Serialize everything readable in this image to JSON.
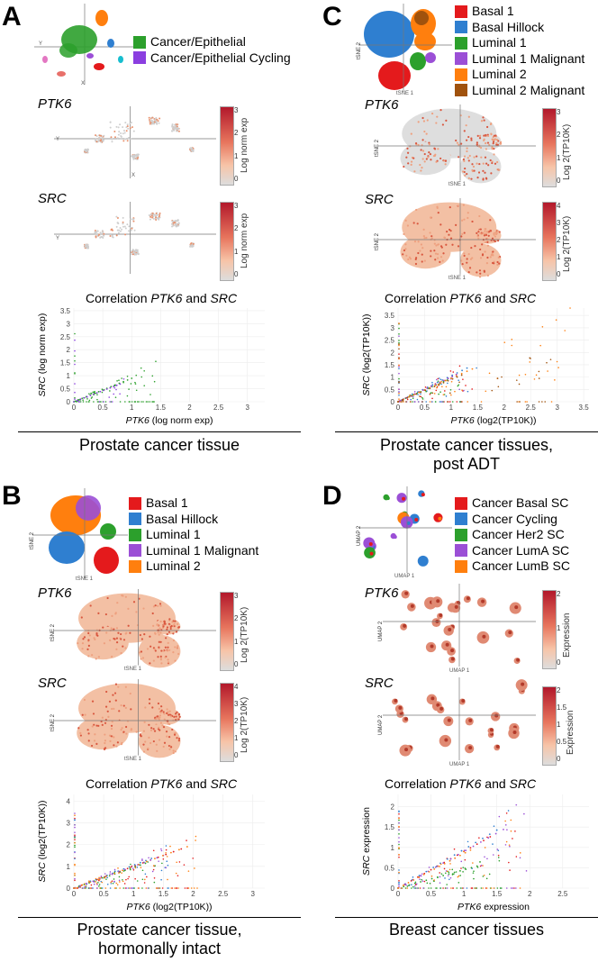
{
  "panels": {
    "A": {
      "letter": "A",
      "legend": [
        {
          "label": "Cancer/Epithelial",
          "color": "#2ca02c"
        },
        {
          "label": "Cancer/Epithelial Cycling",
          "color": "#8b3fe0"
        }
      ],
      "gene1": "PTK6",
      "gene2": "SRC",
      "colorbar_label": "Log norm exp",
      "colorbar_ticks": [
        "3",
        "2",
        "1",
        "0"
      ],
      "umap_x": "X",
      "umap_y": "Y",
      "corr_prefix": "Correlation ",
      "corr_and": " and ",
      "caption_lines": [
        "Prostate cancer tissue"
      ]
    },
    "B": {
      "letter": "B",
      "legend": [
        {
          "label": "Basal 1",
          "color": "#e41a1c"
        },
        {
          "label": "Basal Hillock",
          "color": "#2f7fd0"
        },
        {
          "label": "Luminal 1",
          "color": "#2ca02c"
        },
        {
          "label": "Luminal 1 Malignant",
          "color": "#9b4fd6"
        },
        {
          "label": "Luminal 2",
          "color": "#ff7f0e"
        }
      ],
      "gene1": "PTK6",
      "gene2": "SRC",
      "colorbar_label": "Log 2(TP10K)",
      "colorbar1_ticks": [
        "3",
        "2",
        "1",
        "0"
      ],
      "colorbar2_ticks": [
        "4",
        "3",
        "2",
        "1",
        "0"
      ],
      "umap_x": "tSNE 1",
      "umap_y": "tSNE 2",
      "corr_prefix": "Correlation ",
      "corr_and": " and ",
      "caption_lines": [
        "Prostate cancer tissue,",
        "hormonally intact"
      ]
    },
    "C": {
      "letter": "C",
      "legend": [
        {
          "label": "Basal 1",
          "color": "#e41a1c"
        },
        {
          "label": "Basal Hillock",
          "color": "#2f7fd0"
        },
        {
          "label": "Luminal 1",
          "color": "#2ca02c"
        },
        {
          "label": "Luminal 1 Malignant",
          "color": "#9b4fd6"
        },
        {
          "label": "Luminal 2",
          "color": "#ff7f0e"
        },
        {
          "label": "Luminal 2 Malignant",
          "color": "#a0520d"
        }
      ],
      "gene1": "PTK6",
      "gene2": "SRC",
      "colorbar_label": "Log 2(TP10K)",
      "colorbar1_ticks": [
        "3",
        "2",
        "1",
        "0"
      ],
      "colorbar2_ticks": [
        "4",
        "3",
        "2",
        "1",
        "0"
      ],
      "umap_x": "tSNE 1",
      "umap_y": "tSNE 2",
      "corr_prefix": "Correlation ",
      "corr_and": " and ",
      "caption_lines": [
        "Prostate cancer tissues,",
        "post ADT"
      ]
    },
    "D": {
      "letter": "D",
      "legend": [
        {
          "label": "Cancer Basal SC",
          "color": "#e41a1c"
        },
        {
          "label": "Cancer Cycling",
          "color": "#2f7fd0"
        },
        {
          "label": "Cancer Her2 SC",
          "color": "#2ca02c"
        },
        {
          "label": "Cancer LumA SC",
          "color": "#9b4fd6"
        },
        {
          "label": "Cancer LumB SC",
          "color": "#ff7f0e"
        }
      ],
      "gene1": "PTK6",
      "gene2": "SRC",
      "colorbar_label": "Expression",
      "colorbar1_ticks": [
        "2",
        "1",
        "0"
      ],
      "colorbar2_ticks": [
        "2",
        "1.5",
        "1",
        "0.5",
        "0"
      ],
      "umap_x": "UMAP 1",
      "umap_y": "UMAP 2",
      "corr_prefix": "Correlation ",
      "corr_and": " and ",
      "caption_lines": [
        "Breast cancer tissues"
      ]
    }
  },
  "chart_data": [
    {
      "type": "scatter",
      "panel": "A",
      "title": "Correlation PTK6 and SRC",
      "xlabel_gene": "PTK6",
      "xlabel_unit": " (log norm exp)",
      "ylabel_gene": "SRC",
      "ylabel_unit": " (log norm exp)",
      "xlim": [
        0,
        3.3
      ],
      "ylim": [
        0,
        3.6
      ],
      "xticks": [
        "0",
        "0.5",
        "1",
        "1.5",
        "2",
        "2.5",
        "3"
      ],
      "xtick_values": [
        0,
        0.5,
        1,
        1.5,
        2,
        2.5,
        3
      ],
      "yticks": [
        "0",
        "0.5",
        "1",
        "1.5",
        "2",
        "2.5",
        "3",
        "3.5"
      ],
      "ytick_values": [
        0,
        0.5,
        1,
        1.5,
        2,
        2.5,
        3,
        3.5
      ],
      "series": [
        {
          "name": "Cancer/Epithelial",
          "color": "#2ca02c",
          "trend_slope": 0.9,
          "trend_xmax": 1.0,
          "x_spread": 1.45,
          "n": 90
        },
        {
          "name": "Cancer/Epithelial Cycling",
          "color": "#8b3fe0",
          "trend_slope": 0.85,
          "trend_xmax": 0.8,
          "x_spread": 1.0,
          "n": 15
        }
      ]
    },
    {
      "type": "scatter",
      "panel": "B",
      "title": "Correlation PTK6 and SRC",
      "xlabel_gene": "PTK6",
      "xlabel_unit": " (log2(TP10K))",
      "ylabel_gene": "SRC",
      "ylabel_unit": " (log2(TP10K))",
      "xlim": [
        0,
        3.2
      ],
      "ylim": [
        0,
        4.3
      ],
      "xticks": [
        "0",
        "0.5",
        "1",
        "1.5",
        "2",
        "2.5",
        "3"
      ],
      "xtick_values": [
        0,
        0.5,
        1,
        1.5,
        2,
        2.5,
        3
      ],
      "yticks": [
        "0",
        "1",
        "2",
        "3",
        "4"
      ],
      "ytick_values": [
        0,
        1,
        2,
        3,
        4
      ],
      "series": [
        {
          "name": "Basal 1",
          "color": "#e41a1c",
          "trend_slope": 1.0,
          "trend_xmax": 1.8,
          "x_spread": 2.0,
          "n": 40
        },
        {
          "name": "Basal Hillock",
          "color": "#2f7fd0",
          "trend_slope": 1.05,
          "trend_xmax": 1.3,
          "x_spread": 1.6,
          "n": 35
        },
        {
          "name": "Luminal 1",
          "color": "#2ca02c",
          "trend_slope": 0.95,
          "trend_xmax": 1.2,
          "x_spread": 1.5,
          "n": 35
        },
        {
          "name": "Luminal 1 Malignant",
          "color": "#9b4fd6",
          "trend_slope": 1.0,
          "trend_xmax": 1.5,
          "x_spread": 1.8,
          "n": 35
        },
        {
          "name": "Luminal 2",
          "color": "#ff7f0e",
          "trend_slope": 1.0,
          "trend_xmax": 1.9,
          "x_spread": 2.1,
          "n": 60
        }
      ]
    },
    {
      "type": "scatter",
      "panel": "C",
      "title": "Correlation PTK6 and SRC",
      "xlabel_gene": "PTK6",
      "xlabel_unit": " (log2(TP10K))",
      "ylabel_gene": "SRC",
      "ylabel_unit": " (log2(TP10K))",
      "xlim": [
        0,
        3.6
      ],
      "ylim": [
        0,
        3.8
      ],
      "xticks": [
        "0",
        "0.5",
        "1",
        "1.5",
        "2",
        "2.5",
        "3",
        "3.5"
      ],
      "xtick_values": [
        0,
        0.5,
        1,
        1.5,
        2,
        2.5,
        3,
        3.5
      ],
      "yticks": [
        "0",
        "0.5",
        "1",
        "1.5",
        "2",
        "2.5",
        "3",
        "3.5"
      ],
      "ytick_values": [
        0,
        0.5,
        1,
        1.5,
        2,
        2.5,
        3,
        3.5
      ],
      "series": [
        {
          "name": "Basal 1",
          "color": "#e41a1c",
          "trend_slope": 1.0,
          "trend_xmax": 1.1,
          "x_spread": 1.4,
          "n": 30
        },
        {
          "name": "Basal Hillock",
          "color": "#2f7fd0",
          "trend_slope": 1.05,
          "trend_xmax": 1.3,
          "x_spread": 1.5,
          "n": 30
        },
        {
          "name": "Luminal 1",
          "color": "#2ca02c",
          "trend_slope": 0.95,
          "trend_xmax": 1.0,
          "x_spread": 1.3,
          "n": 25
        },
        {
          "name": "Luminal 1 Malignant",
          "color": "#9b4fd6",
          "trend_slope": 1.0,
          "trend_xmax": 1.1,
          "x_spread": 1.3,
          "n": 20
        },
        {
          "name": "Luminal 2",
          "color": "#ff7f0e",
          "trend_slope": 0.95,
          "trend_xmax": 1.4,
          "x_spread": 3.4,
          "n": 45
        },
        {
          "name": "Luminal 2 Malignant",
          "color": "#a0520d",
          "trend_slope": 0.9,
          "trend_xmax": 1.2,
          "x_spread": 3.0,
          "n": 30
        }
      ]
    },
    {
      "type": "scatter",
      "panel": "D",
      "title": "Correlation PTK6 and SRC",
      "xlabel_gene": "PTK6",
      "xlabel_unit": " expression",
      "ylabel_gene": "SRC",
      "ylabel_unit": " expression",
      "xlim": [
        0,
        2.9
      ],
      "ylim": [
        0,
        2.3
      ],
      "xticks": [
        "0",
        "0.5",
        "1",
        "1.5",
        "2",
        "2.5"
      ],
      "xtick_values": [
        0,
        0.5,
        1,
        1.5,
        2,
        2.5
      ],
      "yticks": [
        "0",
        "0.5",
        "1",
        "1.5",
        "2"
      ],
      "ytick_values": [
        0,
        0.5,
        1,
        1.5,
        2
      ],
      "series": [
        {
          "name": "Cancer Basal SC",
          "color": "#e41a1c",
          "trend_slope": 0.9,
          "trend_xmax": 1.4,
          "x_spread": 1.8,
          "n": 30
        },
        {
          "name": "Cancer Cycling",
          "color": "#2f7fd0",
          "trend_slope": 0.95,
          "trend_xmax": 1.5,
          "x_spread": 1.8,
          "n": 20
        },
        {
          "name": "Cancer Her2 SC",
          "color": "#2ca02c",
          "trend_slope": 0.45,
          "trend_xmax": 1.2,
          "x_spread": 1.6,
          "n": 60
        },
        {
          "name": "Cancer LumA SC",
          "color": "#9b4fd6",
          "trend_slope": 0.9,
          "trend_xmax": 1.6,
          "x_spread": 2.0,
          "n": 40
        },
        {
          "name": "Cancer LumB SC",
          "color": "#ff7f0e",
          "trend_slope": 0.85,
          "trend_xmax": 1.1,
          "x_spread": 1.9,
          "n": 30
        }
      ]
    }
  ]
}
